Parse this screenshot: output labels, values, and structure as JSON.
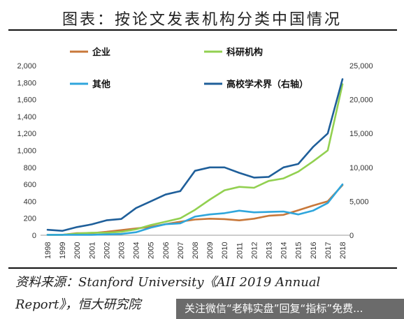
{
  "title": "图表：按论文发表机构分类中国情况",
  "source_line1": "资料来源：Stanford University《AII 2019 Annual",
  "source_line2": "Report》，恒大研究院",
  "watermark": "关注微信“老韩实盘”回复“指标”免费...",
  "chart_data": {
    "type": "line",
    "categories": [
      "1998",
      "1999",
      "2000",
      "2001",
      "2002",
      "2003",
      "2004",
      "2005",
      "2006",
      "2007",
      "2008",
      "2009",
      "2010",
      "2011",
      "2012",
      "2013",
      "2014",
      "2015",
      "2016",
      "2017",
      "2018"
    ],
    "left_axis": {
      "ylim": [
        0,
        2000
      ],
      "ticks": [
        "0",
        "200",
        "400",
        "600",
        "800",
        "1,000",
        "1,200",
        "1,400",
        "1,600",
        "1,800",
        "2,000"
      ]
    },
    "right_axis": {
      "ylim": [
        0,
        25000
      ],
      "ticks": [
        "0",
        "5,000",
        "10,000",
        "15,000",
        "20,000",
        "25,000"
      ]
    },
    "series": [
      {
        "name": "企业",
        "axis": "left",
        "color": "#c8783a",
        "values": [
          5,
          5,
          25,
          25,
          40,
          60,
          80,
          100,
          130,
          160,
          185,
          195,
          190,
          175,
          195,
          230,
          240,
          295,
          350,
          400,
          590
        ]
      },
      {
        "name": "科研机构",
        "axis": "left",
        "color": "#92d050",
        "values": [
          5,
          5,
          20,
          30,
          30,
          40,
          70,
          120,
          160,
          200,
          300,
          420,
          530,
          570,
          560,
          640,
          670,
          750,
          870,
          1000,
          1780
        ]
      },
      {
        "name": "其他",
        "axis": "left",
        "color": "#2fa6dc",
        "values": [
          5,
          5,
          5,
          5,
          10,
          15,
          35,
          90,
          130,
          140,
          220,
          245,
          260,
          290,
          270,
          275,
          280,
          245,
          290,
          380,
          600
        ]
      },
      {
        "name": "高校学术界（右轴）",
        "axis": "right",
        "color": "#1f5f9a",
        "values": [
          800,
          650,
          1200,
          1600,
          2200,
          2400,
          4000,
          5000,
          6000,
          6500,
          9500,
          10000,
          10000,
          9200,
          8500,
          8600,
          10000,
          10500,
          13000,
          15000,
          23000
        ]
      }
    ],
    "legend_position": "top"
  }
}
